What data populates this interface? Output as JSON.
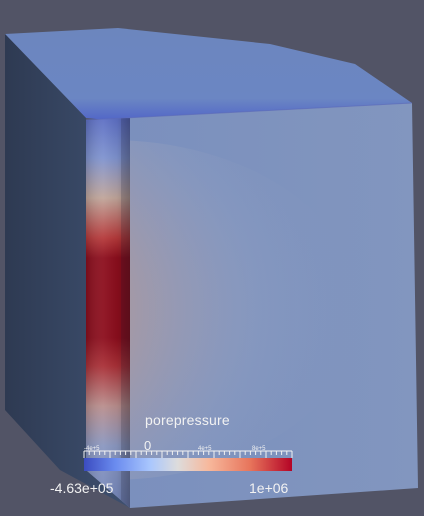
{
  "viewer": {
    "background": "#525466",
    "field_name": "porepressure"
  },
  "colorbar": {
    "title": "porepressure",
    "min_label": "-4.63e+05",
    "max_label": "1e+06",
    "ticks": [
      {
        "label": "-4e+5",
        "size": "small"
      },
      {
        "label": "0",
        "size": "mid"
      },
      {
        "label": "4e+5",
        "size": "small"
      },
      {
        "label": "8e+5",
        "size": "small"
      }
    ],
    "colormap": [
      "#3b4cc0",
      "#dddcdc",
      "#b40426"
    ]
  }
}
